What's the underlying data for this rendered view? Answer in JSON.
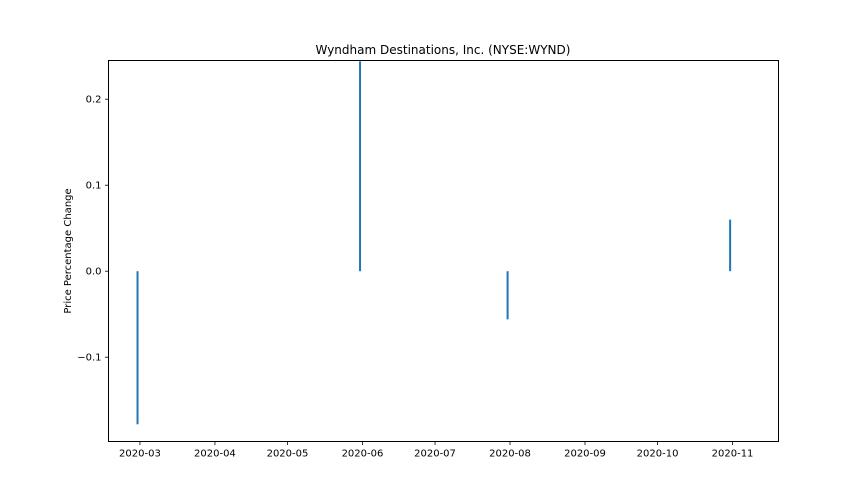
{
  "chart_data": {
    "type": "bar",
    "title": "Wyndham Destinations, Inc. (NYSE:WYND)",
    "xlabel": "",
    "ylabel": "Price Percentage Change",
    "x_ticks": [
      "2020-03",
      "2020-04",
      "2020-05",
      "2020-06",
      "2020-07",
      "2020-08",
      "2020-09",
      "2020-10",
      "2020-11"
    ],
    "y_ticks": [
      -0.1,
      0.0,
      0.1,
      0.2
    ],
    "y_tick_labels": [
      "−0.1",
      "0.0",
      "0.1",
      "0.2"
    ],
    "xlim": [
      "2020-02-17",
      "2020-11-20"
    ],
    "ylim": [
      -0.198,
      0.245
    ],
    "points": [
      {
        "x": "2020-02-29",
        "value": -0.178
      },
      {
        "x": "2020-05-31",
        "value": 0.244
      },
      {
        "x": "2020-07-31",
        "value": -0.056
      },
      {
        "x": "2020-10-31",
        "value": 0.06
      }
    ],
    "bar_color": "#1f77b4",
    "grid": false
  }
}
